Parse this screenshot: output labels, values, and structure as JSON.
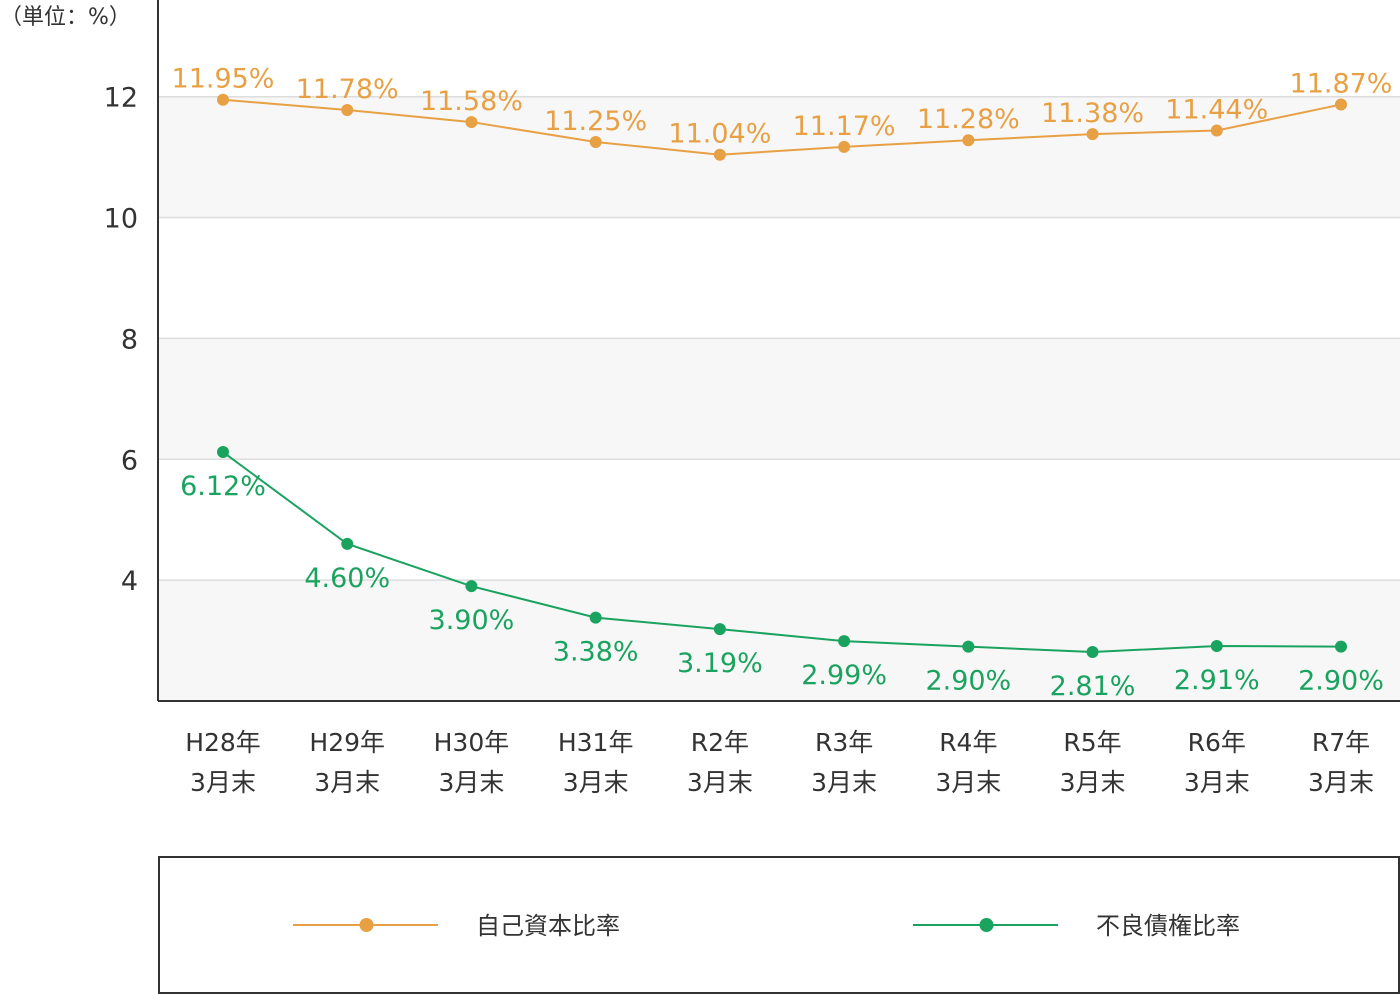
{
  "chart_data": {
    "type": "line",
    "unit_label": "（単位：%）",
    "categories": [
      [
        "H28年",
        "3月末"
      ],
      [
        "H29年",
        "3月末"
      ],
      [
        "H30年",
        "3月末"
      ],
      [
        "H31年",
        "3月末"
      ],
      [
        "R2年",
        "3月末"
      ],
      [
        "R3年",
        "3月末"
      ],
      [
        "R4年",
        "3月末"
      ],
      [
        "R5年",
        "3月末"
      ],
      [
        "R6年",
        "3月末"
      ],
      [
        "R7年",
        "3月末"
      ]
    ],
    "y_ticks": [
      4,
      6,
      8,
      10,
      12
    ],
    "ylim": [
      2,
      13.6
    ],
    "grid": true,
    "legend_position": "bottom",
    "series": [
      {
        "name": "自己資本比率",
        "color": "#e8a045",
        "values": [
          11.95,
          11.78,
          11.58,
          11.25,
          11.04,
          11.17,
          11.28,
          11.38,
          11.44,
          11.87
        ],
        "labels": [
          "11.95%",
          "11.78%",
          "11.58%",
          "11.25%",
          "11.04%",
          "11.17%",
          "11.28%",
          "11.38%",
          "11.44%",
          "11.87%"
        ],
        "label_side": "above"
      },
      {
        "name": "不良債権比率",
        "color": "#1aa35f",
        "values": [
          6.12,
          4.6,
          3.9,
          3.38,
          3.19,
          2.99,
          2.9,
          2.81,
          2.91,
          2.9
        ],
        "labels": [
          "6.12%",
          "4.60%",
          "3.90%",
          "3.38%",
          "3.19%",
          "2.99%",
          "2.90%",
          "2.81%",
          "2.91%",
          "2.90%"
        ],
        "label_side": "below"
      }
    ]
  }
}
